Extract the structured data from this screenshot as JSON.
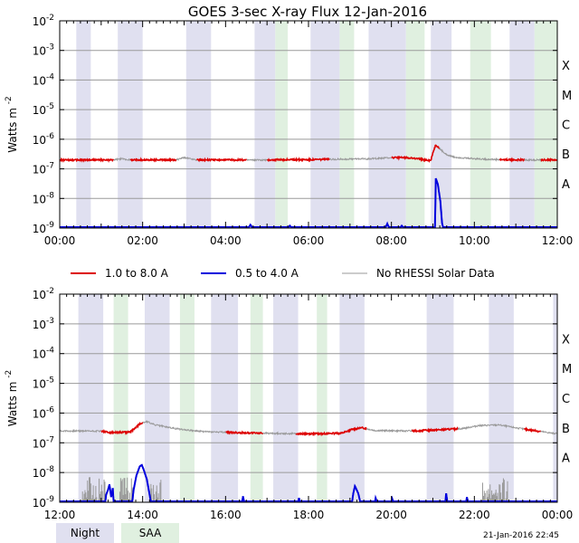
{
  "chart_data": {
    "type": "line",
    "title": "GOES 3-sec X-ray Flux   12-Jan-2016",
    "ylabel": "Watts m",
    "ylabel_sup": "-2",
    "y_scale": "log",
    "ylim": [
      1e-09,
      0.01
    ],
    "y_ticks": [
      {
        "base": "10",
        "exp": "-2"
      },
      {
        "base": "10",
        "exp": "-3"
      },
      {
        "base": "10",
        "exp": "-4"
      },
      {
        "base": "10",
        "exp": "-5"
      },
      {
        "base": "10",
        "exp": "-6"
      },
      {
        "base": "10",
        "exp": "-7"
      },
      {
        "base": "10",
        "exp": "-8"
      },
      {
        "base": "10",
        "exp": "-9"
      }
    ],
    "flare_classes": [
      "X",
      "M",
      "C",
      "B",
      "A"
    ],
    "grid": true,
    "legend": {
      "placement": "between-panels",
      "entries": [
        {
          "label": "1.0 to 8.0 A",
          "color": "#dd0000"
        },
        {
          "label": "0.5 to 4.0 A",
          "color": "#0000dd"
        },
        {
          "label": "No RHESSI Solar Data",
          "color": "#999999"
        }
      ]
    },
    "bottom_legend": [
      {
        "label": "Night",
        "color": "#e0e0f0"
      },
      {
        "label": "SAA",
        "color": "#e0f0e0"
      }
    ],
    "timestamp": "21-Jan-2016 22:45",
    "colors": {
      "long": "#dd0000",
      "short": "#0000dd",
      "no_data": "#999999",
      "night": "#e0e0f0",
      "saa": "#e0f0e0"
    },
    "panels": [
      {
        "xlim": [
          0,
          12
        ],
        "x_ticks": [
          "00:00",
          "02:00",
          "04:00",
          "06:00",
          "08:00",
          "10:00",
          "12:00"
        ],
        "night": [
          [
            0.4,
            0.75
          ],
          [
            1.4,
            2.0
          ],
          [
            3.05,
            3.65
          ],
          [
            4.7,
            5.2
          ],
          [
            6.05,
            6.75
          ],
          [
            7.45,
            8.35
          ],
          [
            8.95,
            9.45
          ],
          [
            10.85,
            11.45
          ]
        ],
        "saa": [
          [
            5.2,
            5.5
          ],
          [
            6.75,
            7.1
          ],
          [
            8.35,
            8.8
          ],
          [
            9.9,
            10.4
          ],
          [
            11.45,
            12.0
          ]
        ],
        "long_flux": [
          [
            0,
            2e-07
          ],
          [
            1.3,
            2e-07
          ],
          [
            1.5,
            2.2e-07
          ],
          [
            1.7,
            2e-07
          ],
          [
            2.8,
            2e-07
          ],
          [
            3.0,
            2.4e-07
          ],
          [
            3.3,
            2e-07
          ],
          [
            5.0,
            2e-07
          ],
          [
            6.5,
            2.1e-07
          ],
          [
            7.5,
            2.2e-07
          ],
          [
            8.0,
            2.4e-07
          ],
          [
            8.4,
            2.4e-07
          ],
          [
            8.7,
            2.1e-07
          ],
          [
            8.95,
            1.9e-07
          ],
          [
            9.0,
            3.5e-07
          ],
          [
            9.07,
            6.5e-07
          ],
          [
            9.15,
            5e-07
          ],
          [
            9.3,
            3.2e-07
          ],
          [
            9.5,
            2.5e-07
          ],
          [
            9.8,
            2.3e-07
          ],
          [
            10.3,
            2.1e-07
          ],
          [
            11.0,
            2e-07
          ],
          [
            12.0,
            2e-07
          ]
        ],
        "long_nodata": [
          [
            1.3,
            1.7
          ],
          [
            2.8,
            3.3
          ],
          [
            4.5,
            5.0
          ],
          [
            6.5,
            8.0
          ],
          [
            9.15,
            10.6
          ],
          [
            11.2,
            11.6
          ]
        ],
        "short_flux": [
          [
            0,
            1e-09
          ],
          [
            4.55,
            1e-09
          ],
          [
            4.6,
            1.3e-09
          ],
          [
            4.65,
            1e-09
          ],
          [
            5.5,
            1e-09
          ],
          [
            5.55,
            1.2e-09
          ],
          [
            5.6,
            1e-09
          ],
          [
            7.85,
            1e-09
          ],
          [
            7.9,
            1.4e-09
          ],
          [
            7.95,
            1e-09
          ],
          [
            8.2,
            1e-09
          ],
          [
            8.25,
            1.2e-09
          ],
          [
            8.3,
            1e-09
          ],
          [
            9.05,
            1e-09
          ],
          [
            9.07,
            4.8e-08
          ],
          [
            9.12,
            3e-08
          ],
          [
            9.18,
            8e-09
          ],
          [
            9.22,
            1.5e-09
          ],
          [
            9.25,
            1e-09
          ],
          [
            12,
            1e-09
          ]
        ],
        "short_nodata": []
      },
      {
        "xlim": [
          12,
          24
        ],
        "x_ticks": [
          "12:00",
          "14:00",
          "16:00",
          "18:00",
          "20:00",
          "22:00",
          "00:00"
        ],
        "night": [
          [
            12.45,
            13.05
          ],
          [
            14.05,
            14.65
          ],
          [
            15.65,
            16.3
          ],
          [
            17.15,
            17.75
          ],
          [
            18.75,
            19.35
          ],
          [
            20.85,
            21.5
          ],
          [
            22.35,
            22.95
          ],
          [
            23.9,
            24.0
          ]
        ],
        "saa": [
          [
            13.3,
            13.65
          ],
          [
            14.9,
            15.25
          ],
          [
            16.6,
            16.9
          ],
          [
            18.2,
            18.45
          ]
        ],
        "long_flux": [
          [
            12,
            2.5e-07
          ],
          [
            13.0,
            2.5e-07
          ],
          [
            13.2,
            2.2e-07
          ],
          [
            13.7,
            2.3e-07
          ],
          [
            13.95,
            4.5e-07
          ],
          [
            14.1,
            5.2e-07
          ],
          [
            14.3,
            4e-07
          ],
          [
            14.8,
            3e-07
          ],
          [
            15.4,
            2.4e-07
          ],
          [
            16.2,
            2.2e-07
          ],
          [
            17.0,
            2.1e-07
          ],
          [
            18.0,
            2e-07
          ],
          [
            18.8,
            2.1e-07
          ],
          [
            19.05,
            2.8e-07
          ],
          [
            19.3,
            3.2e-07
          ],
          [
            19.6,
            2.6e-07
          ],
          [
            20.5,
            2.5e-07
          ],
          [
            21.3,
            2.8e-07
          ],
          [
            21.7,
            3e-07
          ],
          [
            22.1,
            3.8e-07
          ],
          [
            22.6,
            4e-07
          ],
          [
            23.0,
            3.2e-07
          ],
          [
            23.5,
            2.5e-07
          ],
          [
            24.0,
            2e-07
          ]
        ],
        "long_nodata": [
          [
            12.0,
            13.0
          ],
          [
            14.0,
            16.0
          ],
          [
            16.9,
            17.7
          ],
          [
            19.4,
            20.5
          ],
          [
            21.6,
            23.2
          ],
          [
            23.6,
            24.0
          ]
        ],
        "short_flux": [
          [
            12,
            1e-09
          ],
          [
            13.1,
            1e-09
          ],
          [
            13.12,
            1.8e-09
          ],
          [
            13.16,
            2.5e-09
          ],
          [
            13.2,
            4e-09
          ],
          [
            13.24,
            1.5e-09
          ],
          [
            13.28,
            3e-09
          ],
          [
            13.3,
            1e-09
          ],
          [
            13.75,
            1e-09
          ],
          [
            13.78,
            2.5e-09
          ],
          [
            13.85,
            8e-09
          ],
          [
            13.93,
            1.6e-08
          ],
          [
            13.98,
            1.8e-08
          ],
          [
            14.03,
            1.2e-08
          ],
          [
            14.1,
            6e-09
          ],
          [
            14.15,
            2.5e-09
          ],
          [
            14.2,
            1e-09
          ],
          [
            16.4,
            1e-09
          ],
          [
            16.42,
            1.6e-09
          ],
          [
            16.45,
            1e-09
          ],
          [
            17.75,
            1e-09
          ],
          [
            17.77,
            1.4e-09
          ],
          [
            17.8,
            1e-09
          ],
          [
            19.05,
            1e-09
          ],
          [
            19.08,
            2e-09
          ],
          [
            19.12,
            3.5e-09
          ],
          [
            19.2,
            2e-09
          ],
          [
            19.25,
            1e-09
          ],
          [
            19.6,
            1e-09
          ],
          [
            19.62,
            1.4e-09
          ],
          [
            19.65,
            1e-09
          ],
          [
            20.0,
            1e-09
          ],
          [
            20.02,
            1.3e-09
          ],
          [
            20.05,
            1e-09
          ],
          [
            21.3,
            1e-09
          ],
          [
            21.32,
            2e-09
          ],
          [
            21.35,
            1e-09
          ],
          [
            21.8,
            1e-09
          ],
          [
            21.82,
            1.5e-09
          ],
          [
            21.85,
            1e-09
          ],
          [
            24,
            1e-09
          ]
        ],
        "short_nodata": [
          [
            12.55,
            13.1
          ],
          [
            13.45,
            13.75
          ],
          [
            14.2,
            14.45
          ],
          [
            22.2,
            22.8
          ]
        ]
      }
    ]
  }
}
